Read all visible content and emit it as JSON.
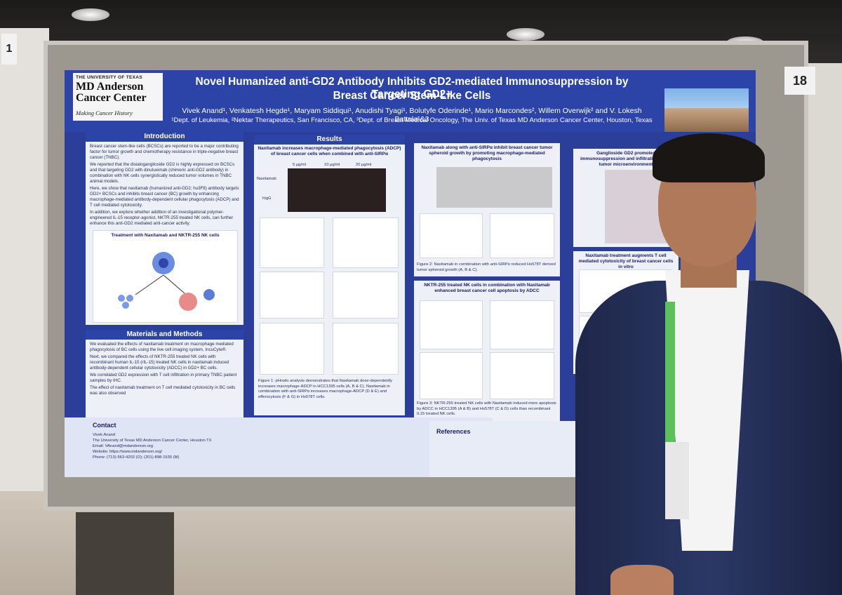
{
  "board": {
    "number": "18",
    "side_number": "1"
  },
  "poster": {
    "logo": {
      "line1": "THE UNIVERSITY OF TEXAS",
      "line2": "MD Anderson",
      "line3": "Cancer Center",
      "tagline": "Making Cancer History"
    },
    "title_line1": "Novel Humanized anti-GD2 Antibody Inhibits GD2-mediated Immunosuppression by Targeting GD2+",
    "title_line2": "Breast Cancer Stem-Like Cells",
    "authors": "Vivek Anand¹, Venkatesh Hegde¹, Maryam Siddiqui¹, Anudishi Tyagi¹, Bolutyfe Oderinde¹, Mario Marcondes², Willem Overwijk² and V. Lokesh Battula¹&3",
    "affiliations": "¹Dept. of Leukemia, ²Nektar Therapeutics, San Francisco, CA, ³Dept. of Breast Medical Oncology, The Univ. of Texas MD Anderson Cancer Center, Houston, Texas",
    "introduction": {
      "heading": "Introduction",
      "bullets": [
        "Breast cancer stem-like cells (BCSCs) are reported to be a major contributing factor for tumor growth and chemotherapy resistance in triple-negative breast cancer (TNBC).",
        "We reported that the disialoganglioside GD2 is highly expressed on BCSCs and that targeting GD2 with dinutuximab (chimeric anti-GD2 antibody) in combination with NK cells synergistically reduced tumor volumes in TNBC animal models.",
        "Here, we show that naxitamab (humanized anti-GD2; hu3F8) antibody targets GD2+ BCSCs and inhibits breast cancer (BC) growth by enhancing macrophage-mediated antibody-dependent cellular phagocytosis (ADCP) and T cell mediated cytotoxicity.",
        "In addition, we explore whether addition of an investigational polymer-engineered IL-15 receptor-agonist, NKTR-255 treated NK cells, can further enhance this anti-GD2 mediated anti-cancer activity."
      ],
      "diagram_title": "Treatment with Naxitamab and NKTR-255 NK cells"
    },
    "methods": {
      "heading": "Materials and Methods",
      "bullets": [
        "We evaluated the effects of naxitamab treatment on macrophage mediated phagocytosis of BC cells using the live cell imaging system, IncuCyte®.",
        "Next, we compared the effects of NKTR-255 treated NK cells with recombinant human IL-15 (rIL-15) treated NK cells in naxitamab induced antibody-dependent cellular cytotoxicity (ADCC) in GD2+ BC cells.",
        "We correlated GD2 expression with T cell infiltration in primary TNBC patient samples by IHC.",
        "The effect of naxitamab treatment on T cell mediated cytotoxicity in BC cells was also observed"
      ]
    },
    "results": {
      "heading": "Results",
      "panel1_title": "Naxitamab increases macrophage-mediated phagocytosis (ADCP) of breast cancer cells when combined with anti-SIRPα",
      "concentrations": [
        "5 µg/ml",
        "10 µg/ml",
        "20 µg/ml"
      ],
      "row_labels": [
        "Naxitamab",
        "hIgG"
      ],
      "panel1_caption": "Figure 1: pHrodo analysis demonstrates that Naxitamab dose-dependently increases macrophage-ADCP in HCC1395 cells (A, B & C). Naxitamab in combination with anti-SIRPα increases macrophage-ADCP (D & E) and efferocytosis (F & G) in Hs578T cells.",
      "panel2_title": "Naxitamab along with anti-SIRPα inhibit breast cancer tumor spheroid growth by promoting macrophage-mediated phagocytosis",
      "panel2_caption": "Figure 2: Naxitamab in combination with anti-SIRPα reduced Hs578T derived tumor spheroid growth (A, B & C).",
      "panel3_title": "NKTR-255 treated NK cells in combination with Naxitamab enhanced breast cancer cell apoptosis by ADCC",
      "panel3_caption": "Figure 3: NKTR-255 treated NK cells with Naxitamab induced more apoptosis by ADCC in HCC1395 (A & B) and Hs578T (C & D) cells than recombinant IL15 treated NK cells.",
      "panel4_title": "Ganglioside GD2 promotes immunosuppression and infiltration in the tumor microenvironment",
      "panel5_title": "Naxitamab treatment augments T cell mediated cytotoxicity of breast cancer cells in vitro"
    },
    "contact": {
      "heading": "Contact",
      "name": "Vivek Anand",
      "org": "The University of Texas MD Anderson Cancer Center, Houston TX",
      "email": "Email: VAnand@mdanderson.org",
      "website": "Website: https://www.mdanderson.org/",
      "phone": "Phone: (713)-563-4202 (O); (201)-898-1535 (M)"
    },
    "references_heading": "References"
  },
  "colors": {
    "poster_blue": "#2c44a8",
    "panel_bg": "#eef0f7",
    "jacket": "#24305a"
  }
}
